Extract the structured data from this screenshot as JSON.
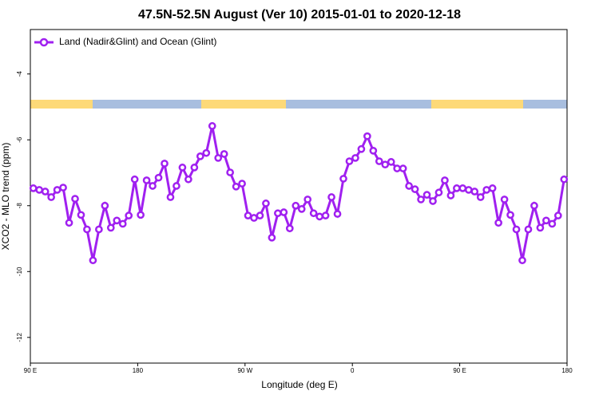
{
  "chart_data": {
    "type": "line",
    "title": "47.5N-52.5N August (Ver 10)   2015-01-01 to 2020-12-18",
    "x_label": "Longitude (deg E)",
    "y_label": "XCO2 - MLO trend (ppm)",
    "xlim": [
      90,
      540
    ],
    "ylim": [
      -12.78,
      -2.65
    ],
    "xticks": [
      {
        "value": 90,
        "label": "90 E"
      },
      180,
      {
        "value": 270,
        "label": "90 W"
      },
      {
        "value": 360,
        "label": "0"
      },
      {
        "value": 450,
        "label": "90 E"
      },
      {
        "value": 540,
        "label": "180"
      }
    ],
    "yticks": [
      -4,
      -6,
      -8,
      -10,
      -12
    ],
    "legend": "top-left",
    "series": [
      {
        "name": "Land (Nadir&Glint) and Ocean (Glint)",
        "color": "#a020f0",
        "x": [
          92.5,
          97.5,
          102.5,
          107.5,
          112.5,
          117.5,
          122.5,
          127.5,
          132.5,
          137.5,
          142.5,
          147.5,
          152.5,
          157.5,
          162.5,
          167.5,
          172.5,
          177.5,
          182.5,
          187.5,
          192.5,
          197.5,
          202.5,
          207.5,
          212.5,
          217.5,
          222.5,
          227.5,
          232.5,
          237.5,
          242.5,
          247.5,
          252.5,
          257.5,
          262.5,
          267.5,
          272.5,
          277.5,
          282.5,
          287.5,
          292.5,
          297.5,
          302.5,
          307.5,
          312.5,
          317.5,
          322.5,
          327.5,
          332.5,
          337.5,
          342.5,
          347.5,
          352.5,
          357.5,
          362.5,
          367.5,
          372.5,
          377.5,
          382.5,
          387.5,
          392.5,
          397.5,
          402.5,
          407.5,
          412.5,
          417.5,
          422.5,
          427.5,
          432.5,
          437.5,
          442.5,
          447.5,
          452.5,
          457.5,
          462.5,
          467.5,
          472.5,
          477.5,
          482.5,
          487.5,
          492.5,
          497.5,
          502.5,
          507.5,
          512.5,
          517.5,
          522.5,
          527.5,
          532.5,
          537.5
        ],
        "values": [
          -7.47,
          -7.52,
          -7.57,
          -7.74,
          -7.52,
          -7.45,
          -8.52,
          -7.79,
          -8.28,
          -8.72,
          -9.66,
          -8.72,
          -8.0,
          -8.67,
          -8.45,
          -8.55,
          -8.3,
          -7.2,
          -8.28,
          -7.23,
          -7.4,
          -7.15,
          -6.72,
          -7.74,
          -7.4,
          -6.84,
          -7.2,
          -6.84,
          -6.5,
          -6.4,
          -5.58,
          -6.55,
          -6.43,
          -6.99,
          -7.42,
          -7.33,
          -8.3,
          -8.37,
          -8.3,
          -7.93,
          -8.97,
          -8.23,
          -8.2,
          -8.69,
          -8.0,
          -8.1,
          -7.81,
          -8.23,
          -8.33,
          -8.3,
          -7.74,
          -8.25,
          -7.18,
          -6.65,
          -6.55,
          -6.28,
          -5.89,
          -6.33,
          -6.65,
          -6.75,
          -6.67,
          -6.87,
          -6.87,
          -7.4,
          -7.5,
          -7.81,
          -7.67,
          -7.86,
          -7.6,
          -7.23,
          -7.69,
          -7.47,
          -7.47,
          -7.52,
          -7.57,
          -7.74,
          -7.52,
          -7.47,
          -8.52,
          -7.81,
          -8.28,
          -8.72,
          -9.66,
          -8.72,
          -8.0,
          -8.67,
          -8.45,
          -8.55,
          -8.3,
          -7.2
        ]
      }
    ]
  }
}
